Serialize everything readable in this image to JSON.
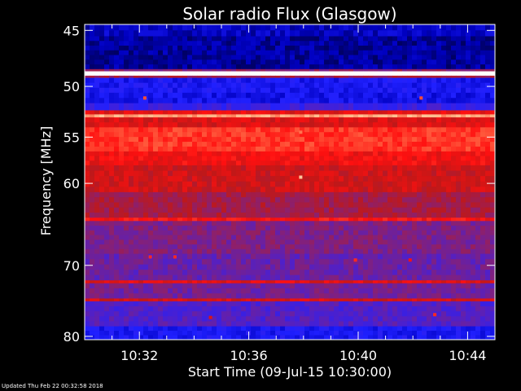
{
  "chart_data": {
    "type": "heatmap",
    "title": "Solar radio Flux (Glasgow)",
    "xlabel": "Start Time (09-Jul-15 10:30:00)",
    "ylabel": "Frequency [MHz]",
    "x_tick_labels": [
      "10:32",
      "10:36",
      "10:40",
      "10:44"
    ],
    "x_tick_values_min": [
      2,
      6,
      10,
      14
    ],
    "x_range_min": [
      0,
      15
    ],
    "y_tick_labels": [
      "45",
      "50",
      "55",
      "60",
      "70",
      "80"
    ],
    "y_tick_values": [
      45,
      50,
      55,
      60,
      70,
      80
    ],
    "y_range": [
      44.5,
      80.5
    ],
    "y_scale": "log",
    "y_direction": "reversed",
    "colormap": [
      "#000040",
      "#0000c0",
      "#2020ff",
      "#5020c8",
      "#8a2070",
      "#c01818",
      "#ff1010",
      "#ff6040",
      "#ffc090",
      "#ffffff"
    ],
    "frequency_bands": [
      {
        "from": 44.5,
        "to": 45.5,
        "level": 0.12
      },
      {
        "from": 45.5,
        "to": 48.4,
        "level": 0.08
      },
      {
        "from": 48.4,
        "to": 48.6,
        "level": 0.45
      },
      {
        "from": 48.6,
        "to": 49.0,
        "level": 1.0
      },
      {
        "from": 49.0,
        "to": 49.2,
        "level": 0.5
      },
      {
        "from": 49.2,
        "to": 50.6,
        "level": 0.2
      },
      {
        "from": 50.6,
        "to": 51.6,
        "level": 0.18
      },
      {
        "from": 51.6,
        "to": 52.3,
        "level": 0.28
      },
      {
        "from": 52.3,
        "to": 52.7,
        "level": 0.62
      },
      {
        "from": 52.7,
        "to": 53.0,
        "level": 0.85
      },
      {
        "from": 53.0,
        "to": 54.0,
        "level": 0.6
      },
      {
        "from": 54.0,
        "to": 56.5,
        "level": 0.72
      },
      {
        "from": 56.5,
        "to": 58.0,
        "level": 0.64
      },
      {
        "from": 58.0,
        "to": 61.0,
        "level": 0.58
      },
      {
        "from": 61.0,
        "to": 64.0,
        "level": 0.5
      },
      {
        "from": 64.0,
        "to": 64.4,
        "level": 0.66
      },
      {
        "from": 64.4,
        "to": 68.5,
        "level": 0.42
      },
      {
        "from": 68.5,
        "to": 72.0,
        "level": 0.38
      },
      {
        "from": 72.0,
        "to": 72.4,
        "level": 0.62
      },
      {
        "from": 72.4,
        "to": 74.5,
        "level": 0.4
      },
      {
        "from": 74.5,
        "to": 74.9,
        "level": 0.6
      },
      {
        "from": 74.9,
        "to": 78.5,
        "level": 0.33
      },
      {
        "from": 78.5,
        "to": 80.5,
        "level": 0.2
      }
    ],
    "bursts": [
      {
        "t": 2.2,
        "f": 51.1,
        "level": 0.75
      },
      {
        "t": 12.3,
        "f": 51.1,
        "level": 0.75
      },
      {
        "t": 7.9,
        "f": 54.5,
        "level": 0.8
      },
      {
        "t": 7.9,
        "f": 59.3,
        "level": 0.9
      },
      {
        "t": 2.4,
        "f": 68.9,
        "level": 0.7
      },
      {
        "t": 3.3,
        "f": 68.9,
        "level": 0.7
      },
      {
        "t": 9.9,
        "f": 69.3,
        "level": 0.7
      },
      {
        "t": 11.9,
        "f": 69.3,
        "level": 0.65
      },
      {
        "t": 12.8,
        "f": 76.8,
        "level": 0.7
      },
      {
        "t": 4.6,
        "f": 77.2,
        "level": 0.6
      }
    ]
  },
  "footer": {
    "updated": "Updated Thu Feb 22 00:32:58 2018"
  }
}
